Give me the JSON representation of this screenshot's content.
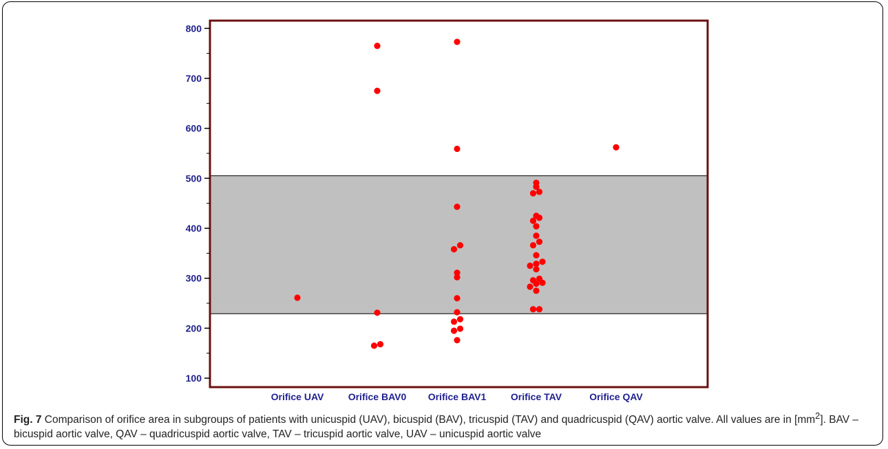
{
  "chart_data": {
    "type": "scatter",
    "title": "",
    "xlabel": "",
    "ylabel": "",
    "ylim": [
      80,
      810
    ],
    "yticks": [
      100,
      200,
      300,
      400,
      500,
      600,
      700,
      800
    ],
    "grid": false,
    "legend": "none",
    "categories": [
      "Orifice UAV",
      "Orifice BAV0",
      "Orifice BAV1",
      "Orifice TAV",
      "Orifice QAV"
    ],
    "reference_band": {
      "from": 229,
      "to": 505,
      "color": "#c0c0c0"
    },
    "colors": {
      "point": "#ff0000",
      "frame": "#6b1010",
      "axis_text": "#1f1f8f",
      "band": "#c0c0c0"
    },
    "series": [
      {
        "points": [
          {
            "category": "Orifice UAV",
            "y": 261,
            "offset": 0
          },
          {
            "category": "Orifice BAV0",
            "y": 765,
            "offset": 0
          },
          {
            "category": "Orifice BAV0",
            "y": 675,
            "offset": 0
          },
          {
            "category": "Orifice BAV0",
            "y": 231,
            "offset": 0
          },
          {
            "category": "Orifice BAV0",
            "y": 168,
            "offset": 1
          },
          {
            "category": "Orifice BAV0",
            "y": 165,
            "offset": -1
          },
          {
            "category": "Orifice BAV1",
            "y": 773,
            "offset": 0
          },
          {
            "category": "Orifice BAV1",
            "y": 559,
            "offset": 0
          },
          {
            "category": "Orifice BAV1",
            "y": 443,
            "offset": 0
          },
          {
            "category": "Orifice BAV1",
            "y": 366,
            "offset": 1
          },
          {
            "category": "Orifice BAV1",
            "y": 358,
            "offset": -1
          },
          {
            "category": "Orifice BAV1",
            "y": 311,
            "offset": 0
          },
          {
            "category": "Orifice BAV1",
            "y": 302,
            "offset": 0
          },
          {
            "category": "Orifice BAV1",
            "y": 260,
            "offset": 0
          },
          {
            "category": "Orifice BAV1",
            "y": 232,
            "offset": 0
          },
          {
            "category": "Orifice BAV1",
            "y": 218,
            "offset": 1
          },
          {
            "category": "Orifice BAV1",
            "y": 213,
            "offset": -1
          },
          {
            "category": "Orifice BAV1",
            "y": 199,
            "offset": 1
          },
          {
            "category": "Orifice BAV1",
            "y": 195,
            "offset": -1
          },
          {
            "category": "Orifice BAV1",
            "y": 176,
            "offset": 0
          },
          {
            "category": "Orifice TAV",
            "y": 491,
            "offset": 0
          },
          {
            "category": "Orifice TAV",
            "y": 483,
            "offset": 0
          },
          {
            "category": "Orifice TAV",
            "y": 473,
            "offset": 1
          },
          {
            "category": "Orifice TAV",
            "y": 470,
            "offset": -1
          },
          {
            "category": "Orifice TAV",
            "y": 425,
            "offset": 0
          },
          {
            "category": "Orifice TAV",
            "y": 421,
            "offset": 1
          },
          {
            "category": "Orifice TAV",
            "y": 415,
            "offset": -1
          },
          {
            "category": "Orifice TAV",
            "y": 404,
            "offset": 0
          },
          {
            "category": "Orifice TAV",
            "y": 385,
            "offset": 0
          },
          {
            "category": "Orifice TAV",
            "y": 373,
            "offset": 1
          },
          {
            "category": "Orifice TAV",
            "y": 366,
            "offset": -1
          },
          {
            "category": "Orifice TAV",
            "y": 346,
            "offset": 0
          },
          {
            "category": "Orifice TAV",
            "y": 333,
            "offset": 2
          },
          {
            "category": "Orifice TAV",
            "y": 329,
            "offset": 0
          },
          {
            "category": "Orifice TAV",
            "y": 325,
            "offset": -2
          },
          {
            "category": "Orifice TAV",
            "y": 318,
            "offset": 0
          },
          {
            "category": "Orifice TAV",
            "y": 299,
            "offset": 1
          },
          {
            "category": "Orifice TAV",
            "y": 296,
            "offset": -1
          },
          {
            "category": "Orifice TAV",
            "y": 291,
            "offset": 2
          },
          {
            "category": "Orifice TAV",
            "y": 289,
            "offset": 0
          },
          {
            "category": "Orifice TAV",
            "y": 283,
            "offset": -2
          },
          {
            "category": "Orifice TAV",
            "y": 275,
            "offset": 0
          },
          {
            "category": "Orifice TAV",
            "y": 238,
            "offset": 1
          },
          {
            "category": "Orifice TAV",
            "y": 238,
            "offset": -1
          },
          {
            "category": "Orifice QAV",
            "y": 562,
            "offset": 0
          }
        ]
      }
    ]
  },
  "caption": {
    "label": "Fig. 7",
    "text_1": " Comparison of orifice area in subgroups of patients with unicuspid (UAV), bicuspid (BAV), tricuspid (TAV) and quadricuspid (QAV) aortic valve. All values are in [mm",
    "superscript": "2",
    "text_2": "]. BAV – bicuspid aortic valve, QAV – quadricuspid aortic valve, TAV – tricuspid aortic valve, UAV – unicuspid aortic valve"
  }
}
